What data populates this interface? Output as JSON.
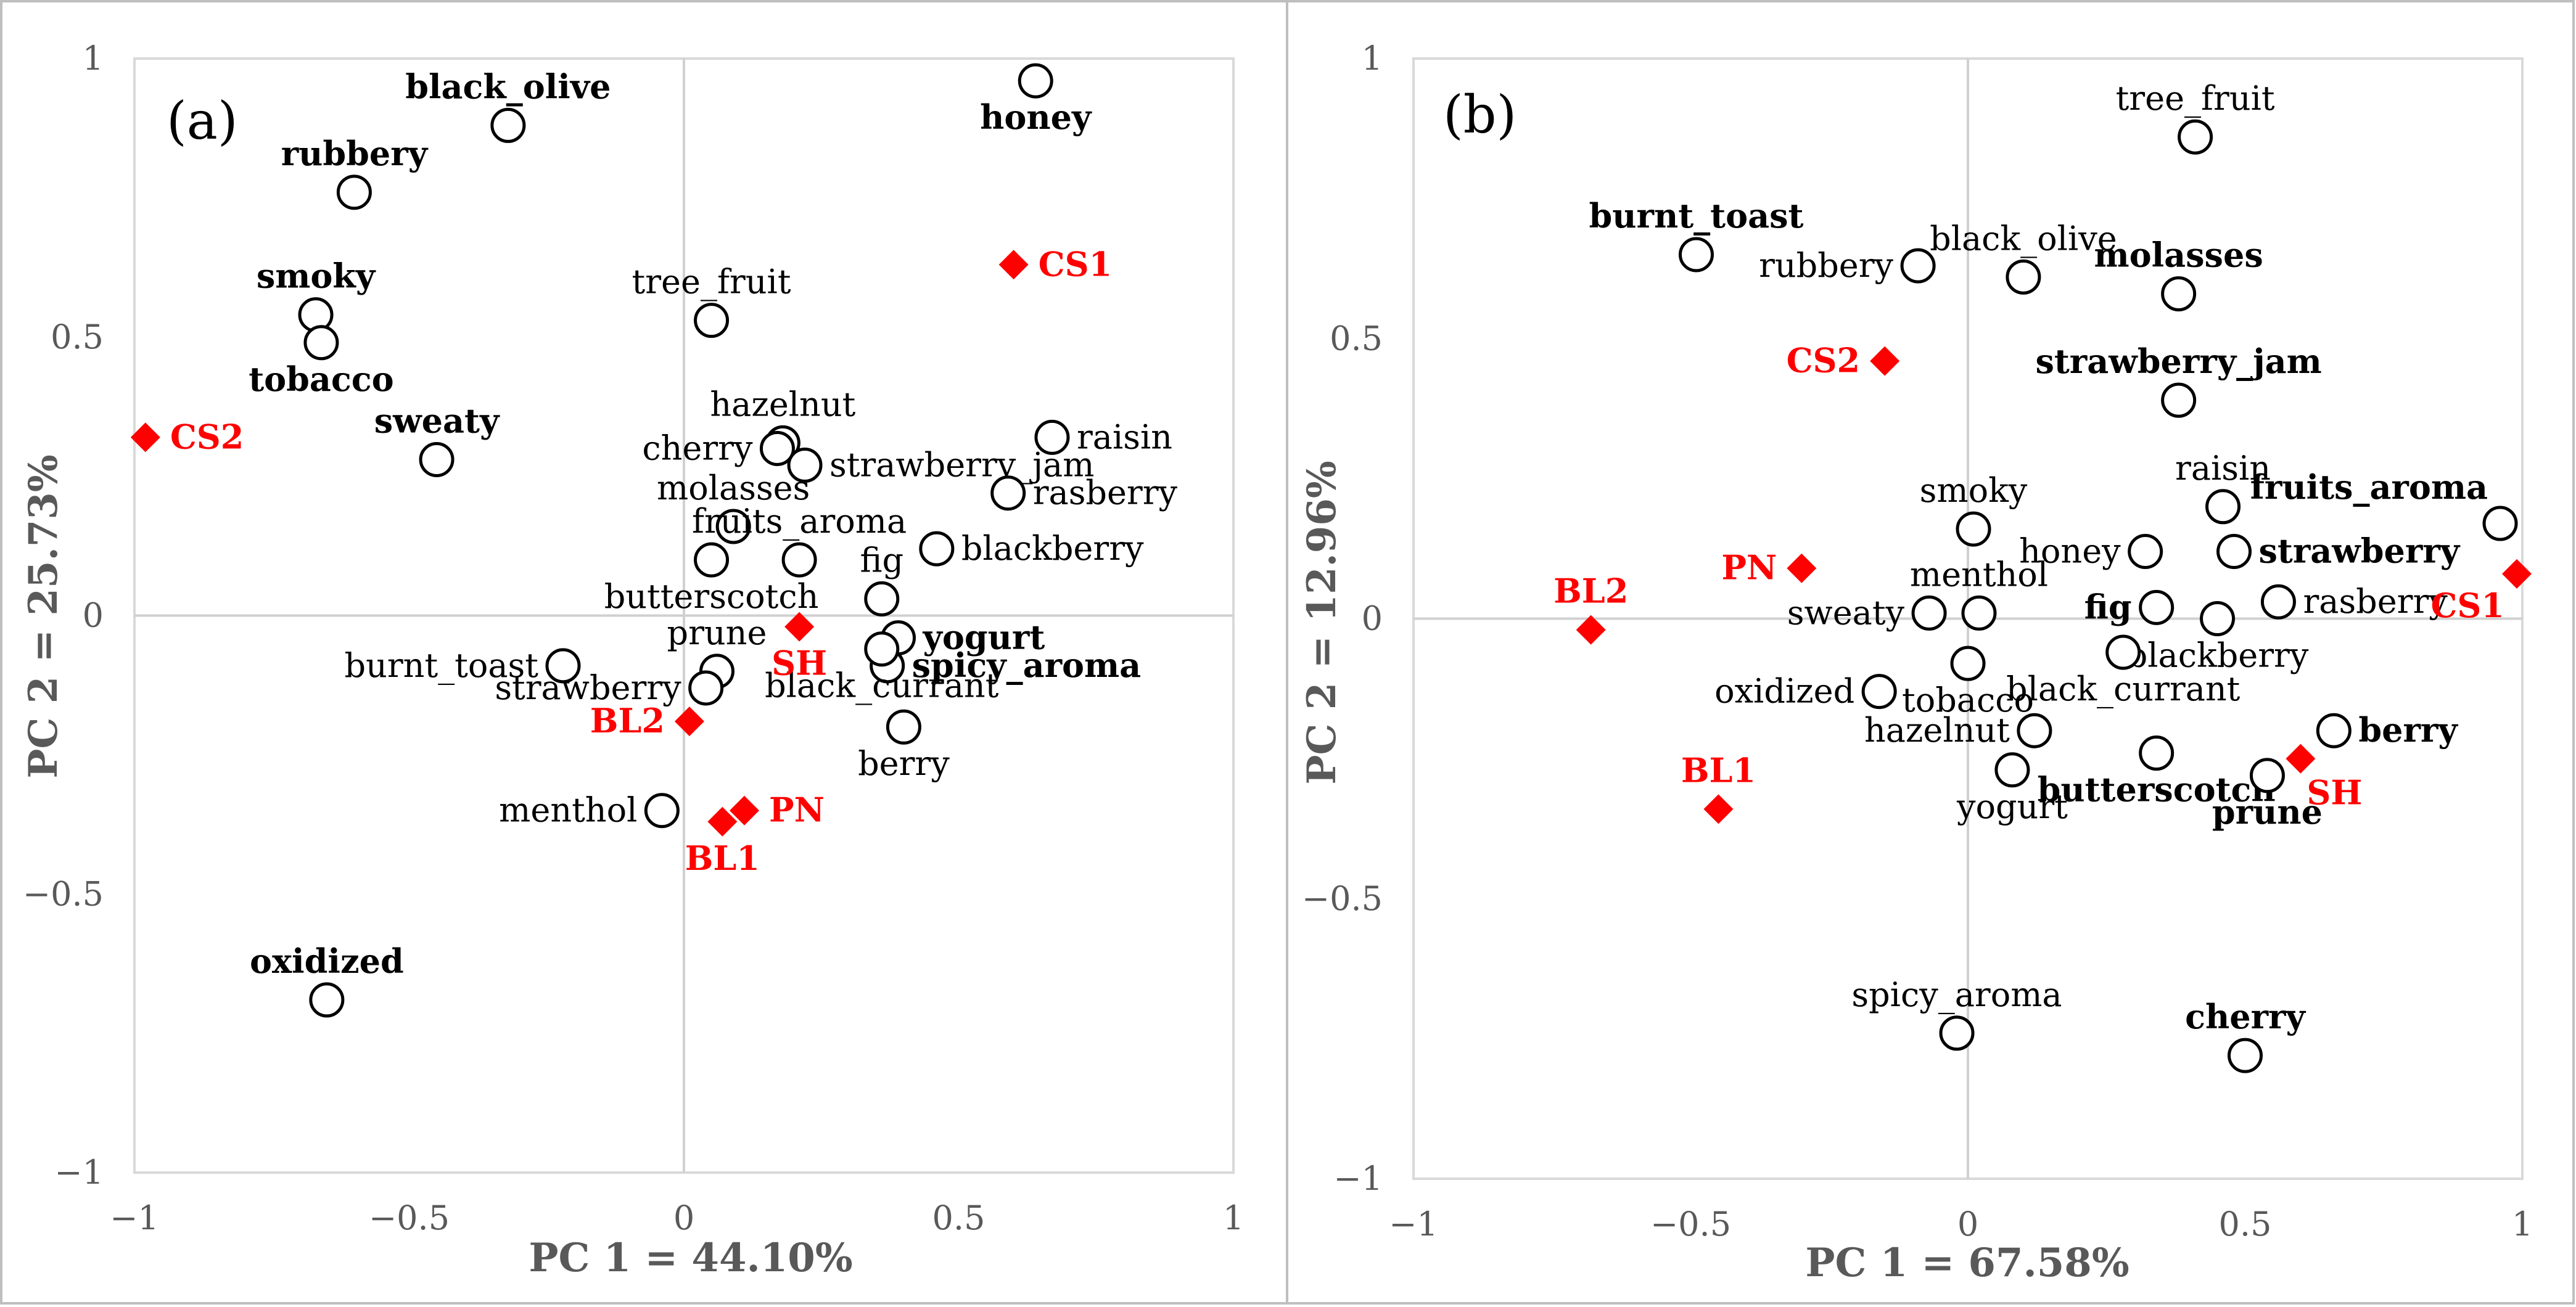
{
  "chart_data": [
    {
      "type": "scatter",
      "panel_label": "(a)",
      "xlabel": "PC 1 = 44.10%",
      "ylabel": "PC 2 = 25.73%",
      "xlim": [
        -1,
        1
      ],
      "ylim": [
        -1,
        1
      ],
      "xticks": [
        -1,
        -0.5,
        0,
        0.5,
        1
      ],
      "yticks": [
        -1,
        -0.5,
        0,
        0.5,
        1
      ],
      "xtick_labels": [
        "−1",
        "−0.5",
        "0",
        "0.5",
        "1"
      ],
      "ytick_labels": [
        "−1",
        "−0.5",
        "0",
        "0.5",
        "1"
      ],
      "attributes": [
        {
          "name": "honey",
          "x": 0.64,
          "y": 0.96,
          "bold": true,
          "label_anchor": "below"
        },
        {
          "name": "black_olive",
          "x": -0.32,
          "y": 0.88,
          "bold": true,
          "label_anchor": "above"
        },
        {
          "name": "rubbery",
          "x": -0.6,
          "y": 0.76,
          "bold": true,
          "label_anchor": "above"
        },
        {
          "name": "smoky",
          "x": -0.67,
          "y": 0.54,
          "bold": true,
          "label_anchor": "above"
        },
        {
          "name": "tobacco",
          "x": -0.66,
          "y": 0.49,
          "bold": true,
          "label_anchor": "below"
        },
        {
          "name": "tree_fruit",
          "x": 0.05,
          "y": 0.53,
          "bold": false,
          "label_anchor": "above"
        },
        {
          "name": "sweaty",
          "x": -0.45,
          "y": 0.28,
          "bold": true,
          "label_anchor": "above"
        },
        {
          "name": "hazelnut",
          "x": 0.18,
          "y": 0.31,
          "bold": false,
          "label_anchor": "above"
        },
        {
          "name": "cherry",
          "x": 0.17,
          "y": 0.3,
          "bold": false,
          "label_anchor": "left"
        },
        {
          "name": "raisin",
          "x": 0.67,
          "y": 0.32,
          "bold": false,
          "label_anchor": "right"
        },
        {
          "name": "strawberry_jam",
          "x": 0.22,
          "y": 0.27,
          "bold": false,
          "label_anchor": "right"
        },
        {
          "name": "rasberry",
          "x": 0.59,
          "y": 0.22,
          "bold": false,
          "label_anchor": "right"
        },
        {
          "name": "molasses",
          "x": 0.09,
          "y": 0.16,
          "bold": false,
          "label_anchor": "above"
        },
        {
          "name": "fruits_aroma",
          "x": 0.21,
          "y": 0.1,
          "bold": false,
          "label_anchor": "above"
        },
        {
          "name": "blackberry",
          "x": 0.46,
          "y": 0.12,
          "bold": false,
          "label_anchor": "right"
        },
        {
          "name": "butterscotch",
          "x": 0.05,
          "y": 0.1,
          "bold": false,
          "label_anchor": "below"
        },
        {
          "name": "fig",
          "x": 0.36,
          "y": 0.03,
          "bold": false,
          "label_anchor": "above"
        },
        {
          "name": "yogurt",
          "x": 0.39,
          "y": -0.04,
          "bold": true,
          "label_anchor": "right"
        },
        {
          "name": "prune",
          "x": 0.06,
          "y": -0.1,
          "bold": false,
          "label_anchor": "above"
        },
        {
          "name": "burnt_toast",
          "x": -0.22,
          "y": -0.09,
          "bold": false,
          "label_anchor": "left"
        },
        {
          "name": "strawberry",
          "x": 0.04,
          "y": -0.13,
          "bold": false,
          "label_anchor": "left"
        },
        {
          "name": "spicy_aroma",
          "x": 0.37,
          "y": -0.09,
          "bold": true,
          "label_anchor": "right"
        },
        {
          "name": "black_currant",
          "x": 0.36,
          "y": -0.06,
          "bold": false,
          "label_anchor": "below"
        },
        {
          "name": "berry",
          "x": 0.4,
          "y": -0.2,
          "bold": false,
          "label_anchor": "below"
        },
        {
          "name": "menthol",
          "x": -0.04,
          "y": -0.35,
          "bold": false,
          "label_anchor": "left"
        },
        {
          "name": "oxidized",
          "x": -0.65,
          "y": -0.69,
          "bold": true,
          "label_anchor": "above"
        }
      ],
      "samples": [
        {
          "name": "CS1",
          "x": 0.6,
          "y": 0.63,
          "label_anchor": "right"
        },
        {
          "name": "CS2",
          "x": -0.98,
          "y": 0.32,
          "label_anchor": "right"
        },
        {
          "name": "SH",
          "x": 0.21,
          "y": -0.02,
          "label_anchor": "below"
        },
        {
          "name": "BL2",
          "x": 0.01,
          "y": -0.19,
          "label_anchor": "left"
        },
        {
          "name": "PN",
          "x": 0.11,
          "y": -0.35,
          "label_anchor": "right"
        },
        {
          "name": "BL1",
          "x": 0.07,
          "y": -0.37,
          "label_anchor": "below"
        }
      ]
    },
    {
      "type": "scatter",
      "panel_label": "(b)",
      "xlabel": "PC 1 = 67.58%",
      "ylabel": "PC 2 = 12.96%",
      "xlim": [
        -1,
        1
      ],
      "ylim": [
        -1,
        1
      ],
      "xticks": [
        -1,
        -0.5,
        0,
        0.5,
        1
      ],
      "yticks": [
        -1,
        -0.5,
        0,
        0.5,
        1
      ],
      "xtick_labels": [
        "−1",
        "−0.5",
        "0",
        "0.5",
        "1"
      ],
      "ytick_labels": [
        "−1",
        "−0.5",
        "0",
        "0.5",
        "1"
      ],
      "attributes": [
        {
          "name": "tree_fruit",
          "x": 0.41,
          "y": 0.86,
          "bold": false,
          "label_anchor": "above"
        },
        {
          "name": "burnt_toast",
          "x": -0.49,
          "y": 0.65,
          "bold": true,
          "label_anchor": "above"
        },
        {
          "name": "rubbery",
          "x": -0.09,
          "y": 0.63,
          "bold": false,
          "label_anchor": "left"
        },
        {
          "name": "black_olive",
          "x": 0.1,
          "y": 0.61,
          "bold": false,
          "label_anchor": "above"
        },
        {
          "name": "molasses",
          "x": 0.38,
          "y": 0.58,
          "bold": true,
          "label_anchor": "above"
        },
        {
          "name": "strawberry_jam",
          "x": 0.38,
          "y": 0.39,
          "bold": true,
          "label_anchor": "above"
        },
        {
          "name": "raisin",
          "x": 0.46,
          "y": 0.2,
          "bold": false,
          "label_anchor": "above"
        },
        {
          "name": "fruits_aroma",
          "x": 0.96,
          "y": 0.17,
          "bold": true,
          "label_anchor": "upper-left"
        },
        {
          "name": "smoky",
          "x": 0.01,
          "y": 0.16,
          "bold": false,
          "label_anchor": "above"
        },
        {
          "name": "honey",
          "x": 0.32,
          "y": 0.12,
          "bold": false,
          "label_anchor": "left"
        },
        {
          "name": "strawberry",
          "x": 0.48,
          "y": 0.12,
          "bold": true,
          "label_anchor": "right"
        },
        {
          "name": "menthol",
          "x": 0.02,
          "y": 0.01,
          "bold": false,
          "label_anchor": "above"
        },
        {
          "name": "sweaty",
          "x": -0.07,
          "y": 0.01,
          "bold": false,
          "label_anchor": "left"
        },
        {
          "name": "fig",
          "x": 0.34,
          "y": 0.02,
          "bold": true,
          "label_anchor": "left"
        },
        {
          "name": "rasberry",
          "x": 0.56,
          "y": 0.03,
          "bold": false,
          "label_anchor": "right"
        },
        {
          "name": "blackberry",
          "x": 0.45,
          "y": 0.0,
          "bold": false,
          "label_anchor": "below"
        },
        {
          "name": "tobacco",
          "x": 0.0,
          "y": -0.08,
          "bold": false,
          "label_anchor": "below"
        },
        {
          "name": "oxidized",
          "x": -0.16,
          "y": -0.13,
          "bold": false,
          "label_anchor": "left"
        },
        {
          "name": "black_currant",
          "x": 0.28,
          "y": -0.06,
          "bold": false,
          "label_anchor": "below"
        },
        {
          "name": "hazelnut",
          "x": 0.12,
          "y": -0.2,
          "bold": false,
          "label_anchor": "left"
        },
        {
          "name": "berry",
          "x": 0.66,
          "y": -0.2,
          "bold": true,
          "label_anchor": "right"
        },
        {
          "name": "yogurt",
          "x": 0.08,
          "y": -0.27,
          "bold": false,
          "label_anchor": "below"
        },
        {
          "name": "butterscotch",
          "x": 0.34,
          "y": -0.24,
          "bold": true,
          "label_anchor": "below"
        },
        {
          "name": "prune",
          "x": 0.54,
          "y": -0.28,
          "bold": true,
          "label_anchor": "below"
        },
        {
          "name": "spicy_aroma",
          "x": -0.02,
          "y": -0.74,
          "bold": false,
          "label_anchor": "above"
        },
        {
          "name": "cherry",
          "x": 0.5,
          "y": -0.78,
          "bold": true,
          "label_anchor": "above"
        }
      ],
      "samples": [
        {
          "name": "CS1",
          "x": 0.99,
          "y": 0.08,
          "label_anchor": "lower-left"
        },
        {
          "name": "CS2",
          "x": -0.15,
          "y": 0.46,
          "label_anchor": "left"
        },
        {
          "name": "PN",
          "x": -0.3,
          "y": 0.09,
          "label_anchor": "left"
        },
        {
          "name": "BL2",
          "x": -0.68,
          "y": -0.02,
          "label_anchor": "above"
        },
        {
          "name": "BL1",
          "x": -0.45,
          "y": -0.34,
          "label_anchor": "above"
        },
        {
          "name": "SH",
          "x": 0.6,
          "y": -0.25,
          "label_anchor": "lower-right"
        }
      ]
    }
  ]
}
